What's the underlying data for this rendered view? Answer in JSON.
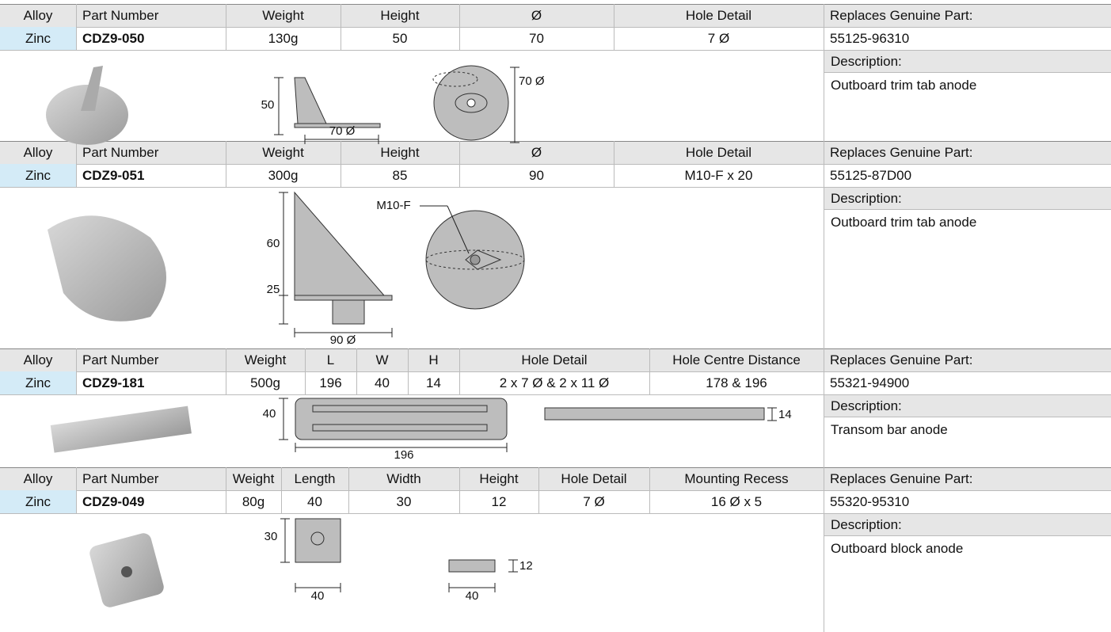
{
  "products": [
    {
      "headers": [
        "Alloy",
        "Part Number",
        "Weight",
        "Height",
        "Ø",
        "Hole Detail",
        "Replaces Genuine Part:"
      ],
      "values": [
        "Zinc",
        "CDZ9-050",
        "130g",
        "50",
        "70",
        "7 Ø",
        "55125-96310"
      ],
      "description_label": "Description:",
      "description": "Outboard trim tab anode",
      "diagram_labels": [
        "50",
        "70 Ø",
        "70 Ø"
      ]
    },
    {
      "headers": [
        "Alloy",
        "Part Number",
        "Weight",
        "Height",
        "Ø",
        "Hole Detail",
        "Replaces Genuine Part:"
      ],
      "values": [
        "Zinc",
        "CDZ9-051",
        "300g",
        "85",
        "90",
        "M10-F x 20",
        "55125-87D00"
      ],
      "description_label": "Description:",
      "description": "Outboard trim tab anode",
      "diagram_labels": [
        "M10-F",
        "60",
        "25",
        "90 Ø"
      ]
    },
    {
      "headers": [
        "Alloy",
        "Part Number",
        "Weight",
        "L",
        "W",
        "H",
        "Hole Detail",
        "Hole Centre Distance",
        "Replaces Genuine Part:"
      ],
      "values": [
        "Zinc",
        "CDZ9-181",
        "500g",
        "196",
        "40",
        "14",
        "2 x 7 Ø & 2 x 11 Ø",
        "178 & 196",
        "55321-94900"
      ],
      "description_label": "Description:",
      "description": "Transom bar anode",
      "diagram_labels": [
        "40",
        "196",
        "14"
      ]
    },
    {
      "headers": [
        "Alloy",
        "Part Number",
        "Weight",
        "Length",
        "Width",
        "Height",
        "Hole Detail",
        "Mounting Recess",
        "Replaces Genuine Part:"
      ],
      "values": [
        "Zinc",
        "CDZ9-049",
        "80g",
        "40",
        "30",
        "12",
        "7 Ø",
        "16 Ø x 5",
        "55320-95310"
      ],
      "description_label": "Description:",
      "description": "Outboard block anode",
      "diagram_labels": [
        "30",
        "40",
        "40",
        "12"
      ]
    }
  ]
}
